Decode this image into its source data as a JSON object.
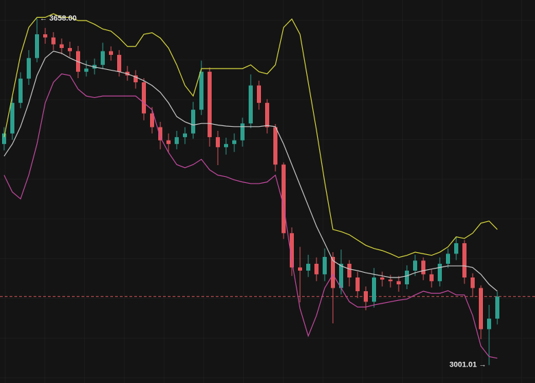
{
  "chart_data": {
    "type": "candlestick",
    "ylim": [
      2967,
      3693
    ],
    "up_color": "#2ea08f",
    "down_color": "#e2545b",
    "open": [
      3420,
      3440,
      3498,
      3544,
      3583,
      3628,
      3622,
      3609,
      3602,
      3596,
      3557,
      3563,
      3570,
      3596,
      3589,
      3557,
      3550,
      3537,
      3478,
      3452,
      3427,
      3420,
      3433,
      3440,
      3485,
      3557,
      3433,
      3414,
      3420,
      3427,
      3459,
      3531,
      3498,
      3452,
      3381,
      3251,
      3186,
      3180,
      3193,
      3173,
      3206,
      3147,
      3193,
      3167,
      3141,
      3121,
      3167,
      3163,
      3160,
      3154,
      3180,
      3199,
      3173,
      3160,
      3193,
      3212,
      3232,
      3167,
      3147,
      3069,
      3089
    ],
    "high": [
      3452,
      3512,
      3556,
      3598,
      3658.0,
      3640,
      3632,
      3620,
      3614,
      3606,
      3578,
      3582,
      3612,
      3605,
      3598,
      3568,
      3560,
      3545,
      3490,
      3462,
      3440,
      3445,
      3452,
      3500,
      3578,
      3565,
      3445,
      3432,
      3440,
      3470,
      3552,
      3540,
      3505,
      3458,
      3385,
      3262,
      3225,
      3210,
      3205,
      3222,
      3215,
      3220,
      3200,
      3178,
      3150,
      3185,
      3178,
      3172,
      3170,
      3190,
      3210,
      3205,
      3182,
      3205,
      3222,
      3245,
      3238,
      3175,
      3152,
      3115,
      3140
    ],
    "low": [
      3408,
      3428,
      3488,
      3532,
      3575,
      3610,
      3598,
      3590,
      3585,
      3545,
      3548,
      3552,
      3562,
      3578,
      3548,
      3540,
      3525,
      3465,
      3440,
      3410,
      3405,
      3410,
      3420,
      3430,
      3475,
      3415,
      3380,
      3400,
      3405,
      3415,
      3450,
      3485,
      3440,
      3368,
      3240,
      3170,
      3120,
      3168,
      3160,
      3160,
      3080,
      3135,
      3150,
      3128,
      3105,
      3110,
      3150,
      3148,
      3140,
      3145,
      3170,
      3162,
      3148,
      3150,
      3185,
      3200,
      3155,
      3130,
      3050,
      3001.01,
      3078
    ],
    "close": [
      3440,
      3498,
      3544,
      3583,
      3628,
      3622,
      3609,
      3602,
      3596,
      3557,
      3563,
      3570,
      3596,
      3589,
      3557,
      3550,
      3537,
      3478,
      3452,
      3427,
      3420,
      3433,
      3440,
      3485,
      3557,
      3433,
      3414,
      3420,
      3427,
      3459,
      3531,
      3498,
      3452,
      3381,
      3251,
      3186,
      3180,
      3193,
      3173,
      3206,
      3147,
      3193,
      3167,
      3141,
      3121,
      3167,
      3163,
      3160,
      3154,
      3180,
      3199,
      3173,
      3160,
      3193,
      3212,
      3232,
      3167,
      3147,
      3069,
      3089,
      3131
    ],
    "lines": [
      {
        "color": "#d9d93f",
        "values": [
          3433,
          3511,
          3589,
          3641,
          3660,
          3660,
          3667,
          3660,
          3660,
          3654,
          3654,
          3647,
          3638,
          3634,
          3621,
          3605,
          3605,
          3628,
          3631,
          3621,
          3602,
          3570,
          3531,
          3511,
          3563,
          3563,
          3563,
          3563,
          3563,
          3563,
          3570,
          3557,
          3553,
          3570,
          3641,
          3657,
          3628,
          3537,
          3446,
          3348,
          3258,
          3254,
          3248,
          3238,
          3228,
          3222,
          3218,
          3212,
          3205,
          3209,
          3215,
          3212,
          3209,
          3215,
          3225,
          3244,
          3241,
          3251,
          3270,
          3274,
          3258
        ]
      },
      {
        "color": "#c9c9c9",
        "values": [
          3397,
          3420,
          3453,
          3498,
          3550,
          3583,
          3596,
          3592,
          3583,
          3576,
          3570,
          3566,
          3563,
          3560,
          3557,
          3553,
          3547,
          3540,
          3531,
          3518,
          3498,
          3472,
          3462,
          3456,
          3459,
          3459,
          3456,
          3454,
          3453,
          3453,
          3453,
          3453,
          3455,
          3453,
          3420,
          3381,
          3342,
          3303,
          3264,
          3232,
          3199,
          3189,
          3183,
          3180,
          3176,
          3173,
          3170,
          3167,
          3167,
          3170,
          3176,
          3180,
          3183,
          3186,
          3189,
          3189,
          3189,
          3186,
          3173,
          3154,
          3141
        ]
      },
      {
        "color": "#c44aa0",
        "values": [
          3361,
          3329,
          3316,
          3361,
          3420,
          3498,
          3537,
          3553,
          3550,
          3524,
          3511,
          3508,
          3511,
          3511,
          3511,
          3511,
          3511,
          3498,
          3485,
          3433,
          3404,
          3381,
          3375,
          3381,
          3391,
          3371,
          3361,
          3358,
          3352,
          3348,
          3345,
          3345,
          3348,
          3361,
          3303,
          3199,
          3108,
          3056,
          3095,
          3147,
          3173,
          3147,
          3121,
          3111,
          3111,
          3115,
          3118,
          3121,
          3124,
          3126,
          3134,
          3141,
          3137,
          3137,
          3142,
          3134,
          3134,
          3095,
          3037,
          3017,
          3014
        ]
      }
    ],
    "annotations": [
      {
        "text": "← 3658.00"
      },
      {
        "text": "3001.01 →"
      }
    ],
    "last_price_line_color": "#d8575c"
  }
}
